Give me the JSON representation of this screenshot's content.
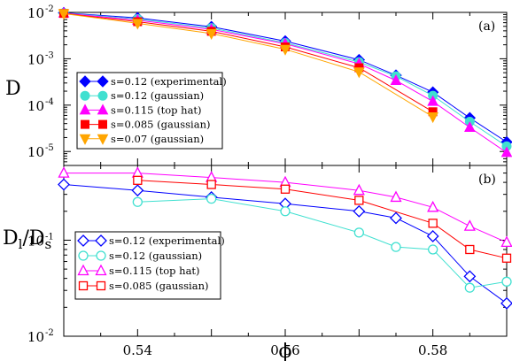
{
  "chart_data": [
    {
      "type": "line",
      "panel_label": "(a)",
      "ylabel": "D",
      "y_scale": "log",
      "ylim": [
        5e-06,
        0.01
      ],
      "y_ticks": [
        1e-05,
        0.0001,
        0.001,
        0.01
      ],
      "y_tick_labels": [
        [
          "10",
          "-5"
        ],
        [
          "10",
          "-4"
        ],
        [
          "10",
          "-3"
        ],
        [
          "10",
          "-2"
        ]
      ],
      "xlim": [
        0.53,
        0.59
      ],
      "grid": false,
      "legend_position": "bottom-left",
      "series": [
        {
          "name": "s=0.12 (experimental)",
          "color": "#0000ff",
          "marker": "diamond",
          "filled": true,
          "x": [
            0.53,
            0.54,
            0.55,
            0.56,
            0.57,
            0.575,
            0.58,
            0.585,
            0.59
          ],
          "y": [
            0.0098,
            0.0076,
            0.0049,
            0.0024,
            0.00095,
            0.00044,
            0.00019,
            5.3e-05,
            1.6e-05
          ]
        },
        {
          "name": "s=0.12 (gaussian)",
          "color": "#40e0d0",
          "marker": "circle",
          "filled": true,
          "x": [
            0.53,
            0.54,
            0.55,
            0.56,
            0.57,
            0.575,
            0.58,
            0.585,
            0.59
          ],
          "y": [
            0.0097,
            0.0072,
            0.0046,
            0.0022,
            0.00085,
            0.00042,
            0.00016,
            4.4e-05,
            1.3e-05
          ]
        },
        {
          "name": "s=0.115 (top hat)",
          "color": "#ff00ff",
          "marker": "triangle-up",
          "filled": true,
          "x": [
            0.53,
            0.54,
            0.55,
            0.56,
            0.57,
            0.575,
            0.58,
            0.585,
            0.59
          ],
          "y": [
            0.0096,
            0.0068,
            0.0043,
            0.0021,
            0.00078,
            0.00034,
            0.00012,
            3.3e-05,
            9.5e-06
          ]
        },
        {
          "name": "s=0.085 (gaussian)",
          "color": "#ff0000",
          "marker": "square",
          "filled": true,
          "x": [
            0.53,
            0.54,
            0.55,
            0.56,
            0.57,
            0.58
          ],
          "y": [
            0.0095,
            0.0063,
            0.0039,
            0.0018,
            0.00064,
            7.2e-05
          ]
        },
        {
          "name": "s=0.07 (gaussian)",
          "color": "#ffa500",
          "marker": "triangle-down",
          "filled": true,
          "x": [
            0.53,
            0.54,
            0.55,
            0.56,
            0.57,
            0.58
          ],
          "y": [
            0.0094,
            0.0058,
            0.0035,
            0.0016,
            0.00052,
            5.6e-05
          ]
        }
      ]
    },
    {
      "type": "line",
      "panel_label": "(b)",
      "ylabel": "Dl/Ds",
      "ylabel_main": "D",
      "ylabel_sub1": "l",
      "ylabel_mid": "/D",
      "ylabel_sub2": "s",
      "xlabel": "ϕ",
      "y_scale": "log",
      "ylim": [
        0.01,
        0.6
      ],
      "y_ticks": [
        0.01,
        0.1
      ],
      "y_tick_labels": [
        [
          "10",
          "-2"
        ],
        [
          "10",
          "-1"
        ]
      ],
      "xlim": [
        0.53,
        0.59
      ],
      "x_ticks": [
        0.54,
        0.56,
        0.58
      ],
      "x_tick_labels": [
        "0.54",
        "0.56",
        "0.58"
      ],
      "grid": false,
      "legend_position": "bottom-left",
      "series": [
        {
          "name": "s=0.12 (experimental)",
          "color": "#0000ff",
          "marker": "diamond",
          "filled": false,
          "x": [
            0.53,
            0.54,
            0.55,
            0.56,
            0.57,
            0.575,
            0.58,
            0.585,
            0.59
          ],
          "y": [
            0.38,
            0.33,
            0.28,
            0.24,
            0.2,
            0.17,
            0.11,
            0.042,
            0.022
          ]
        },
        {
          "name": "s=0.12 (gaussian)",
          "color": "#40e0d0",
          "marker": "circle",
          "filled": false,
          "x": [
            0.54,
            0.55,
            0.56,
            0.57,
            0.575,
            0.58,
            0.585,
            0.59
          ],
          "y": [
            0.25,
            0.27,
            0.2,
            0.12,
            0.085,
            0.08,
            0.032,
            0.037
          ]
        },
        {
          "name": "s=0.115 (top hat)",
          "color": "#ff00ff",
          "marker": "triangle-up",
          "filled": false,
          "x": [
            0.53,
            0.54,
            0.55,
            0.56,
            0.57,
            0.575,
            0.58,
            0.585,
            0.59
          ],
          "y": [
            0.5,
            0.5,
            0.45,
            0.4,
            0.33,
            0.28,
            0.22,
            0.14,
            0.095
          ]
        },
        {
          "name": "s=0.085 (gaussian)",
          "color": "#ff0000",
          "marker": "square",
          "filled": false,
          "x": [
            0.54,
            0.55,
            0.56,
            0.57,
            0.58,
            0.585,
            0.59
          ],
          "y": [
            0.42,
            0.38,
            0.34,
            0.26,
            0.15,
            0.08,
            0.065
          ]
        }
      ]
    }
  ]
}
